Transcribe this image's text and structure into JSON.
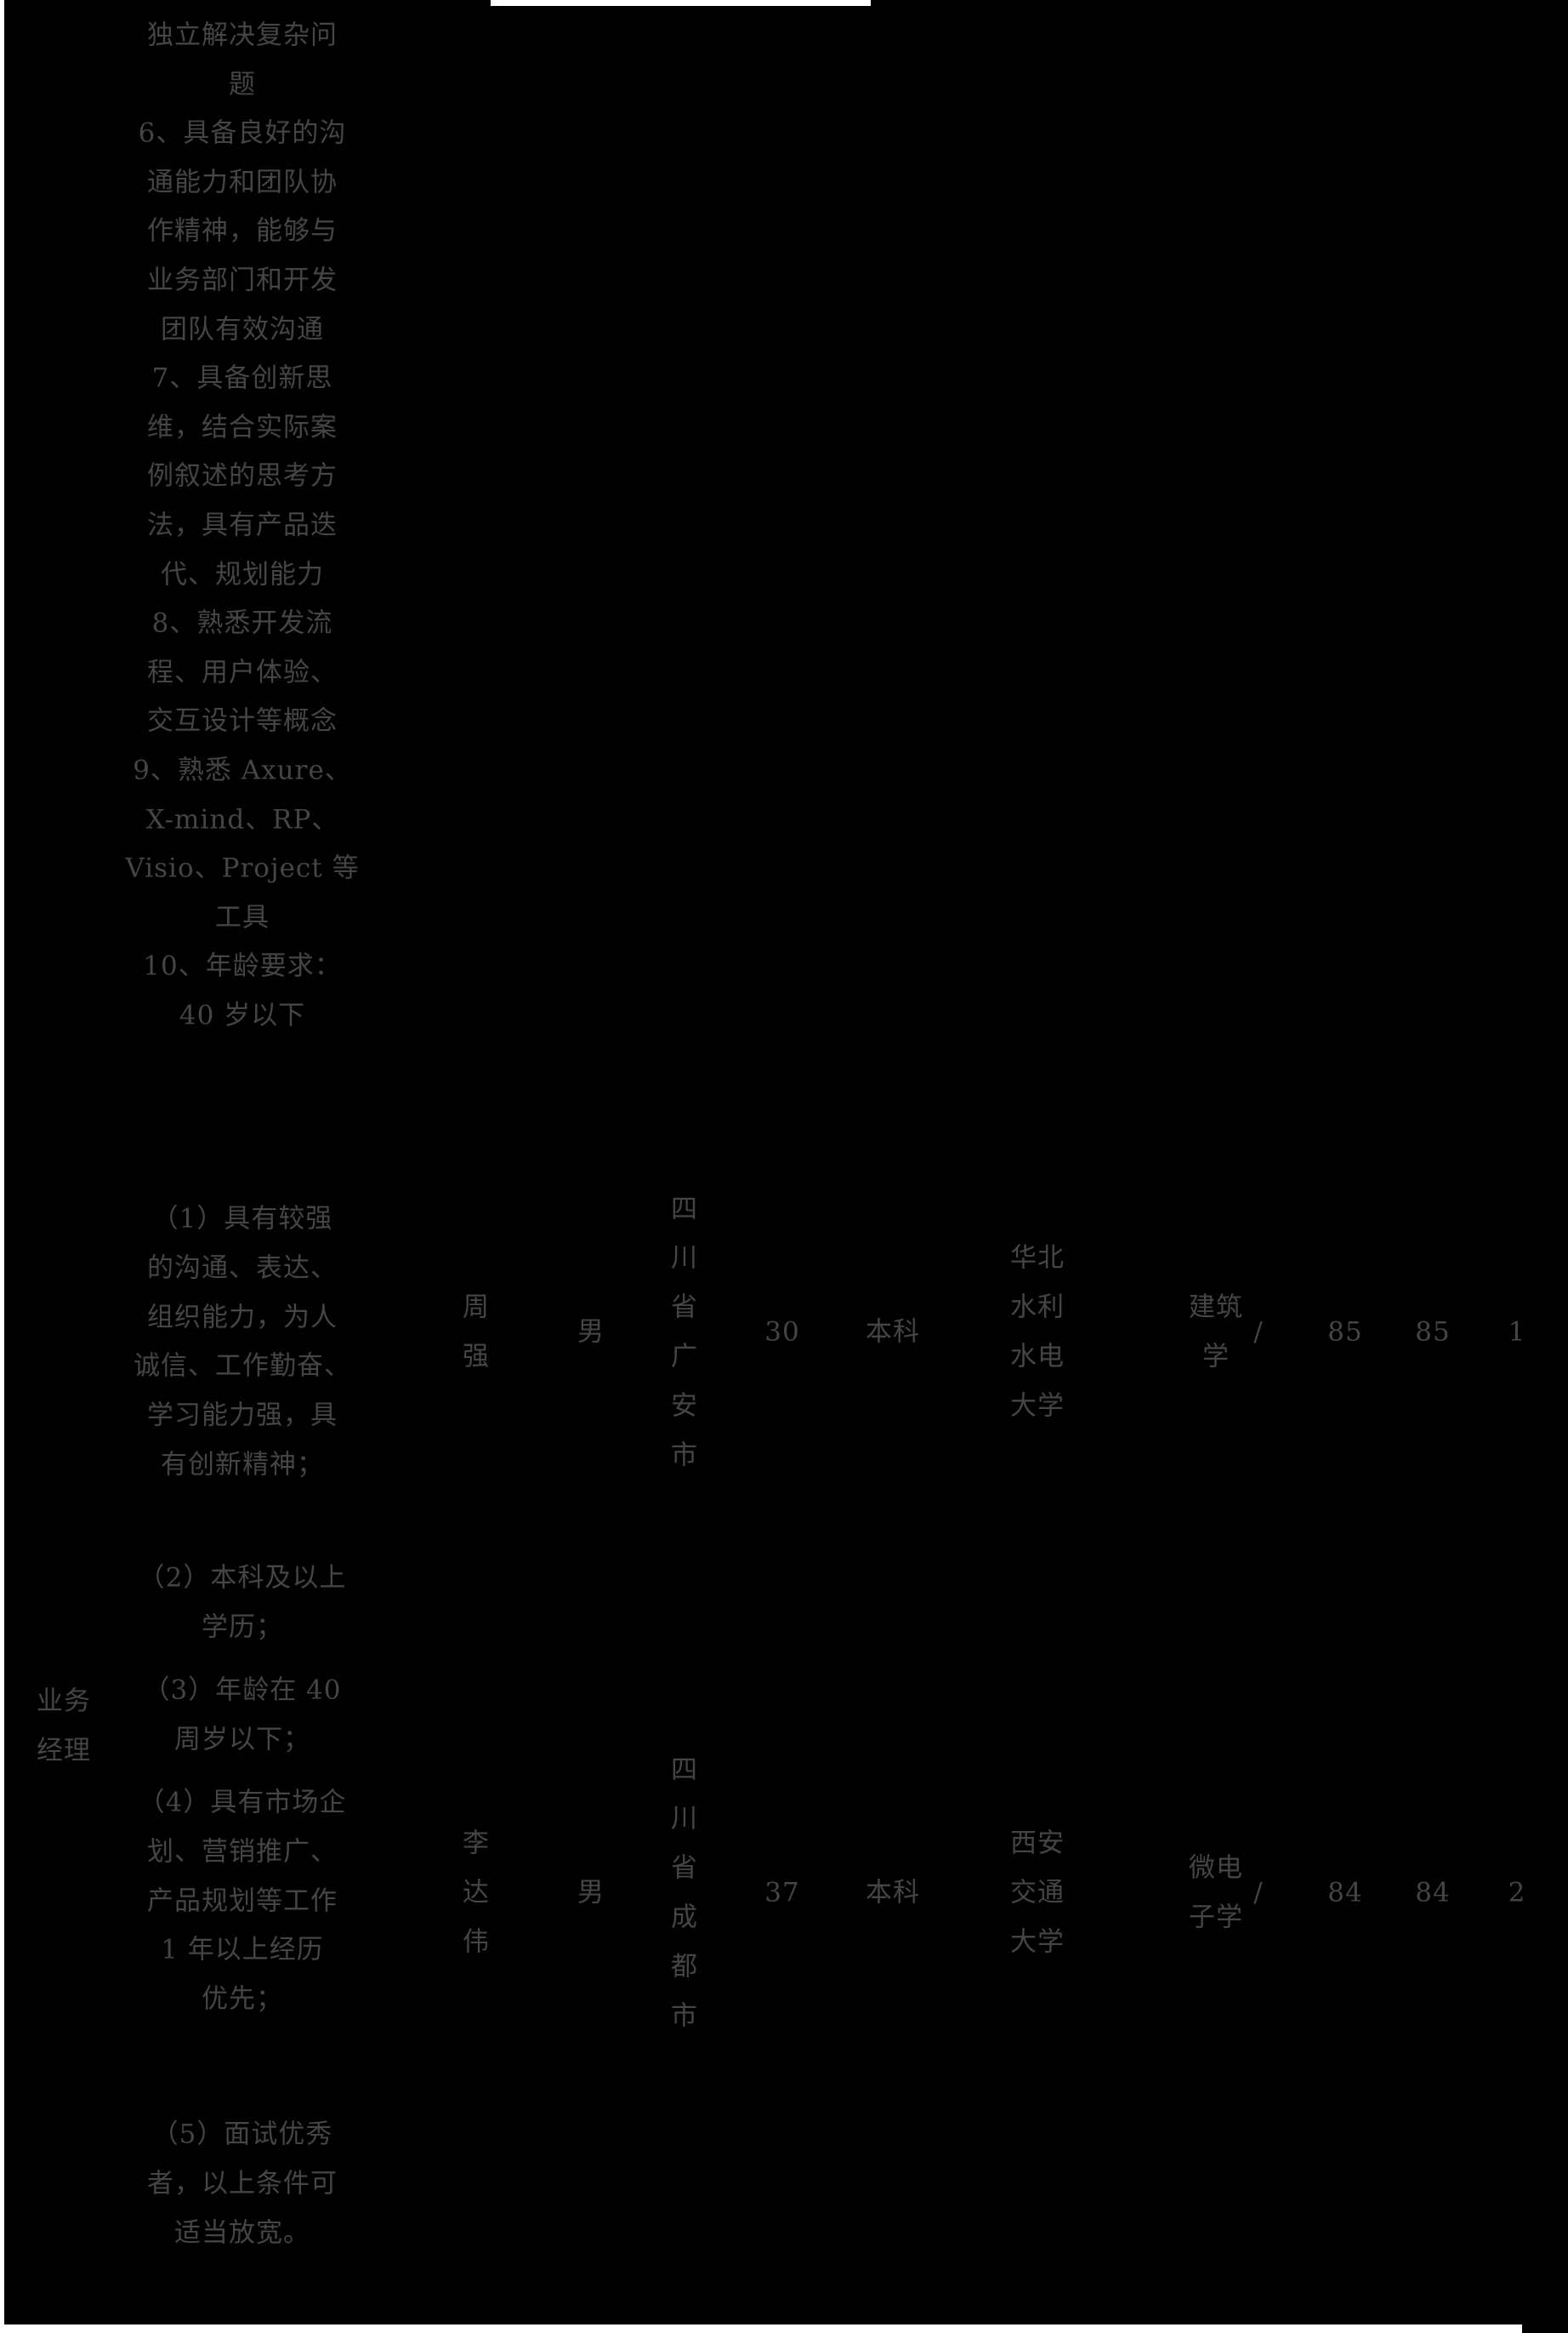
{
  "palette": {
    "background": "#000000",
    "text_color": "#454545",
    "edge_highlight": "#ffffff"
  },
  "table": {
    "previous_row_requirements": {
      "lines": [
        "独立解决复杂问",
        "题",
        "6、具备良好的沟",
        "通能力和团队协",
        "作精神，能够与",
        "业务部门和开发",
        "团队有效沟通",
        "7、具备创新思",
        "维，结合实际案",
        "例叙述的思考方",
        "法，具有产品迭",
        "代、规划能力",
        "8、熟悉开发流",
        "程、用户体验、",
        "交互设计等概念",
        "9、熟悉 Axure、",
        "X-mind、RP、",
        "Visio、Project 等",
        "工具",
        "10、年龄要求：",
        "40 岁以下"
      ]
    },
    "business_manager_row": {
      "position_lines": [
        "业务",
        "经理"
      ],
      "requirement_items": [
        {
          "lines": [
            "（1）具有较强",
            "的沟通、表达、",
            "组织能力，为人",
            "诚信、工作勤奋、",
            "学习能力强，具",
            "有创新精神；"
          ]
        },
        {
          "lines": [
            "（2）本科及以上",
            "学历；"
          ]
        },
        {
          "lines": [
            "（3）年龄在 40",
            "周岁以下；"
          ]
        },
        {
          "lines": [
            "（4）具有市场企",
            "划、营销推广、",
            "产品规划等工作",
            "1 年以上经历",
            "优先；"
          ]
        },
        {
          "lines": [
            "（5）面试优秀",
            "者，以上条件可",
            "适当放宽。"
          ]
        }
      ],
      "candidates": [
        {
          "name_lines": [
            "周",
            "强"
          ],
          "gender": "男",
          "birthplace_chars": [
            "四",
            "川",
            "省",
            "广",
            "安",
            "市"
          ],
          "age": "30",
          "education": "本科",
          "university_lines": [
            "华北",
            "水利",
            "水电",
            "大学"
          ],
          "major_lines": [
            "建筑",
            "学"
          ],
          "slash": "/",
          "score_a": "85",
          "score_b": "85",
          "rank": "1"
        },
        {
          "name_lines": [
            "李",
            "达",
            "伟"
          ],
          "gender": "男",
          "birthplace_chars": [
            "四",
            "川",
            "省",
            "成",
            "都",
            "市"
          ],
          "age": "37",
          "education": "本科",
          "university_lines": [
            "西安",
            "交通",
            "大学"
          ],
          "major_lines": [
            "微电",
            "子学"
          ],
          "slash": "/",
          "score_a": "84",
          "score_b": "84",
          "rank": "2"
        }
      ]
    }
  }
}
